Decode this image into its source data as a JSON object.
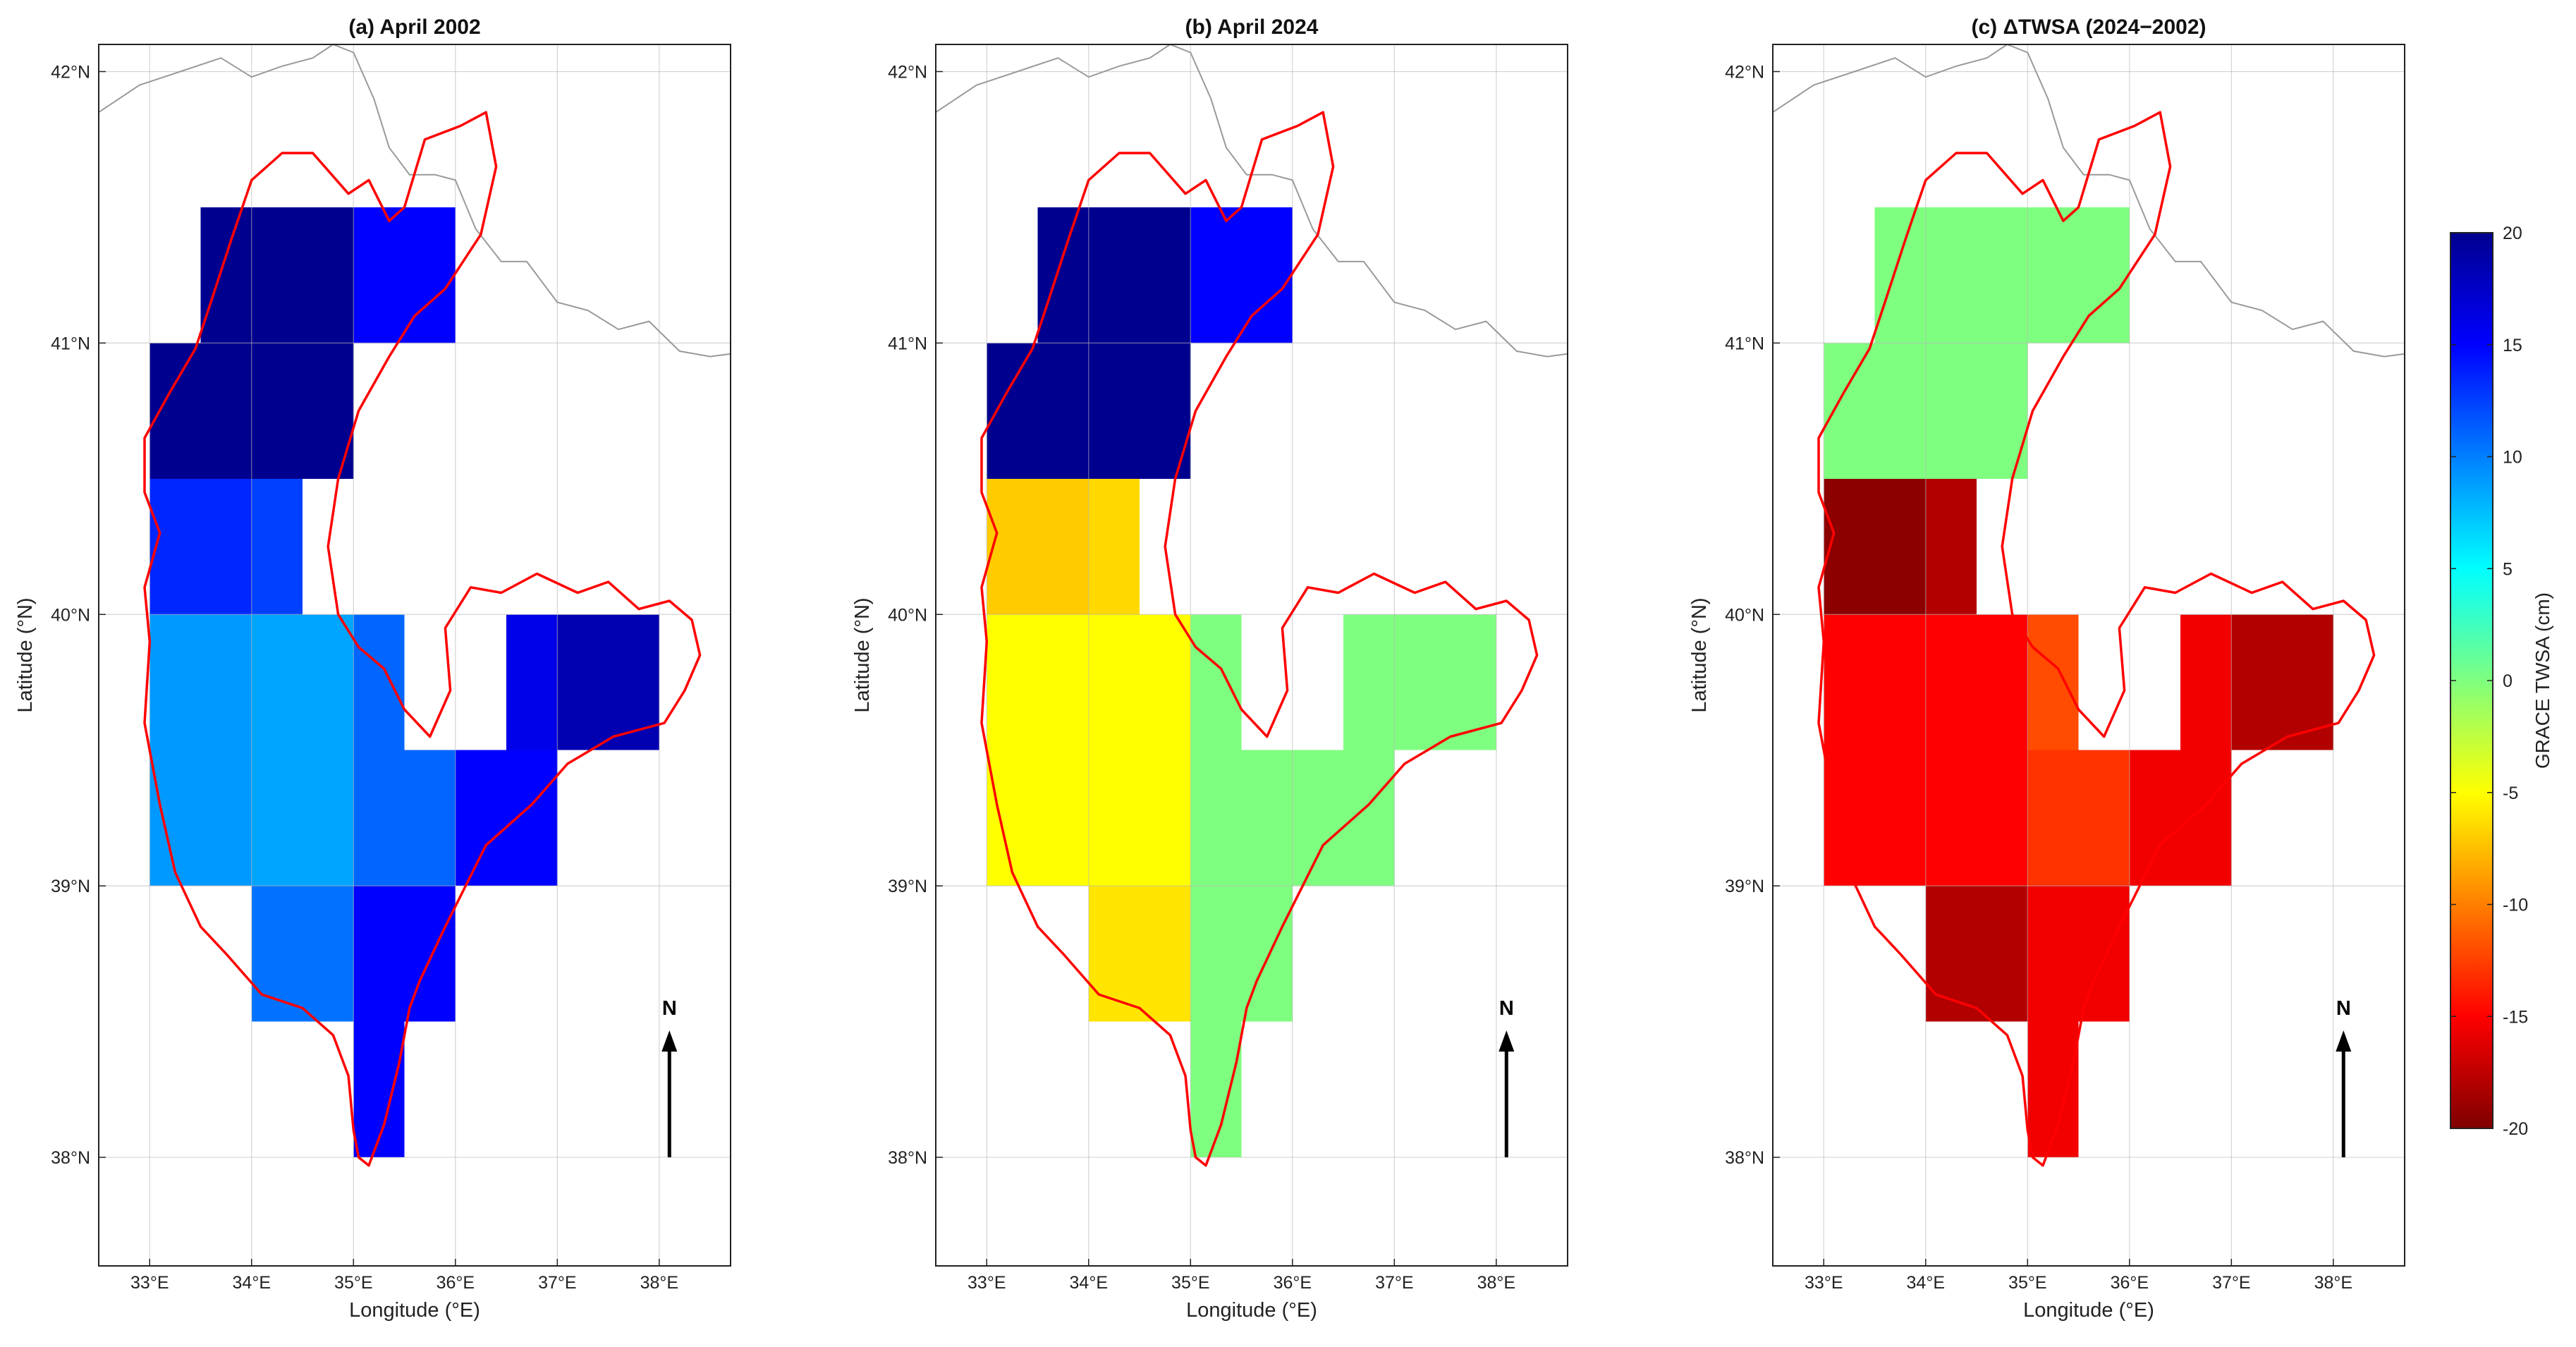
{
  "colorbar": {
    "label": "GRACE TWSA (cm)",
    "min": -20,
    "max": 20,
    "ticks": [
      "20",
      "15",
      "10",
      "5",
      "0",
      "-5",
      "-10",
      "-15",
      "-20"
    ],
    "colormap": [
      "#7f0000",
      "#ff0000",
      "#ff7f00",
      "#ffff00",
      "#7fff7f",
      "#00ffff",
      "#007fff",
      "#0000ff",
      "#00008f"
    ]
  },
  "axes_labels": {
    "xlabel": "Longitude (°E)",
    "ylabel": "Latitude (°N)",
    "xticks": [
      "33°E",
      "34°E",
      "35°E",
      "36°E",
      "37°E",
      "38°E"
    ],
    "yticks": [
      "42°N",
      "41°N",
      "40°N",
      "39°N",
      "38°N"
    ],
    "north": "N"
  },
  "chart_data": [
    {
      "type": "heatmap",
      "title": "(a) April 2002",
      "xlim": [
        32.5,
        38.7
      ],
      "ylim": [
        37.6,
        42.1
      ],
      "cells": [
        {
          "lon": 33.5,
          "lat": 41.0,
          "w": 1.5,
          "h": 0.5,
          "v": 20
        },
        {
          "lon": 35.0,
          "lat": 41.0,
          "w": 1.0,
          "h": 0.5,
          "v": 15
        },
        {
          "lon": 33.0,
          "lat": 40.5,
          "w": 2.0,
          "h": 0.5,
          "v": 20
        },
        {
          "lon": 33.0,
          "lat": 40.0,
          "w": 1.0,
          "h": 0.5,
          "v": 13.5
        },
        {
          "lon": 34.0,
          "lat": 40.0,
          "w": 0.5,
          "h": 0.5,
          "v": 12.5
        },
        {
          "lon": 33.0,
          "lat": 39.5,
          "w": 1.0,
          "h": 0.5,
          "v": 9
        },
        {
          "lon": 34.0,
          "lat": 39.5,
          "w": 1.0,
          "h": 0.5,
          "v": 8.5
        },
        {
          "lon": 35.0,
          "lat": 39.5,
          "w": 0.5,
          "h": 0.5,
          "v": 11
        },
        {
          "lon": 36.5,
          "lat": 39.5,
          "w": 0.5,
          "h": 0.5,
          "v": 16
        },
        {
          "lon": 37.0,
          "lat": 39.5,
          "w": 1.0,
          "h": 0.5,
          "v": 18.5
        },
        {
          "lon": 33.0,
          "lat": 39.0,
          "w": 1.0,
          "h": 0.5,
          "v": 9
        },
        {
          "lon": 34.0,
          "lat": 39.0,
          "w": 1.0,
          "h": 0.5,
          "v": 8.5
        },
        {
          "lon": 35.0,
          "lat": 39.0,
          "w": 1.0,
          "h": 0.5,
          "v": 11
        },
        {
          "lon": 36.0,
          "lat": 39.0,
          "w": 1.0,
          "h": 0.5,
          "v": 15
        },
        {
          "lon": 34.0,
          "lat": 38.5,
          "w": 1.0,
          "h": 0.5,
          "v": 10.5
        },
        {
          "lon": 35.0,
          "lat": 38.5,
          "w": 1.0,
          "h": 0.5,
          "v": 15
        },
        {
          "lon": 35.0,
          "lat": 38.0,
          "w": 0.5,
          "h": 0.5,
          "v": 15
        }
      ]
    },
    {
      "type": "heatmap",
      "title": "(b) April 2024",
      "xlim": [
        32.5,
        38.7
      ],
      "ylim": [
        37.6,
        42.1
      ],
      "cells": [
        {
          "lon": 33.5,
          "lat": 41.0,
          "w": 1.5,
          "h": 0.5,
          "v": 20
        },
        {
          "lon": 35.0,
          "lat": 41.0,
          "w": 1.0,
          "h": 0.5,
          "v": 15
        },
        {
          "lon": 33.0,
          "lat": 40.5,
          "w": 2.0,
          "h": 0.5,
          "v": 20
        },
        {
          "lon": 33.0,
          "lat": 40.0,
          "w": 1.0,
          "h": 0.5,
          "v": -7
        },
        {
          "lon": 34.0,
          "lat": 40.0,
          "w": 0.5,
          "h": 0.5,
          "v": -6.5
        },
        {
          "lon": 33.0,
          "lat": 39.5,
          "w": 2.0,
          "h": 0.5,
          "v": -5
        },
        {
          "lon": 35.0,
          "lat": 39.5,
          "w": 0.5,
          "h": 0.5,
          "v": 0
        },
        {
          "lon": 36.5,
          "lat": 39.5,
          "w": 1.5,
          "h": 0.5,
          "v": 0
        },
        {
          "lon": 33.0,
          "lat": 39.0,
          "w": 2.0,
          "h": 0.5,
          "v": -5
        },
        {
          "lon": 35.0,
          "lat": 39.0,
          "w": 2.0,
          "h": 0.5,
          "v": 0
        },
        {
          "lon": 34.0,
          "lat": 38.5,
          "w": 1.0,
          "h": 0.5,
          "v": -6
        },
        {
          "lon": 35.0,
          "lat": 38.5,
          "w": 1.0,
          "h": 0.5,
          "v": 0
        },
        {
          "lon": 35.0,
          "lat": 38.0,
          "w": 0.5,
          "h": 0.5,
          "v": 0
        }
      ]
    },
    {
      "type": "heatmap",
      "title": "(c) ΔTWSA (2024−2002)",
      "xlim": [
        32.5,
        38.7
      ],
      "ylim": [
        37.6,
        42.1
      ],
      "cells": [
        {
          "lon": 33.5,
          "lat": 41.0,
          "w": 2.5,
          "h": 0.5,
          "v": 0
        },
        {
          "lon": 33.0,
          "lat": 40.5,
          "w": 2.0,
          "h": 0.5,
          "v": 0
        },
        {
          "lon": 33.0,
          "lat": 40.0,
          "w": 1.0,
          "h": 0.5,
          "v": -19.5
        },
        {
          "lon": 34.0,
          "lat": 40.0,
          "w": 0.5,
          "h": 0.5,
          "v": -18
        },
        {
          "lon": 33.0,
          "lat": 39.5,
          "w": 2.0,
          "h": 0.5,
          "v": -15
        },
        {
          "lon": 35.0,
          "lat": 39.5,
          "w": 0.5,
          "h": 0.5,
          "v": -12
        },
        {
          "lon": 36.5,
          "lat": 39.5,
          "w": 0.5,
          "h": 0.5,
          "v": -15.5
        },
        {
          "lon": 37.0,
          "lat": 39.5,
          "w": 1.0,
          "h": 0.5,
          "v": -18
        },
        {
          "lon": 33.0,
          "lat": 39.0,
          "w": 2.0,
          "h": 0.5,
          "v": -15
        },
        {
          "lon": 35.0,
          "lat": 39.0,
          "w": 1.0,
          "h": 0.5,
          "v": -13
        },
        {
          "lon": 36.0,
          "lat": 39.0,
          "w": 1.0,
          "h": 0.5,
          "v": -15.5
        },
        {
          "lon": 34.0,
          "lat": 38.5,
          "w": 1.0,
          "h": 0.5,
          "v": -18
        },
        {
          "lon": 35.0,
          "lat": 38.5,
          "w": 1.0,
          "h": 0.5,
          "v": -15.5
        },
        {
          "lon": 35.0,
          "lat": 38.0,
          "w": 0.5,
          "h": 0.5,
          "v": -15.5
        }
      ]
    }
  ]
}
